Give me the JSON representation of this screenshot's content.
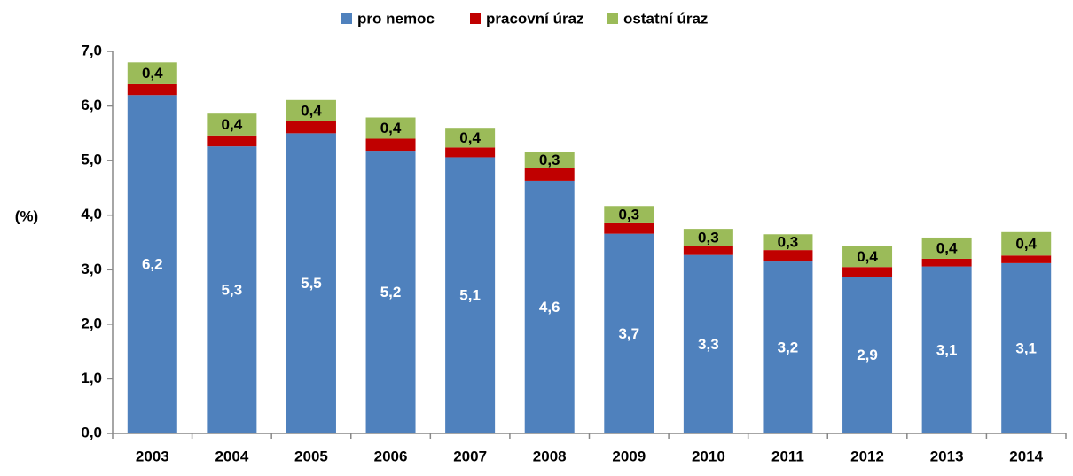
{
  "chart_data": {
    "type": "stacked_bar",
    "y_label": "(%)",
    "categories": [
      "2003",
      "2004",
      "2005",
      "2006",
      "2007",
      "2008",
      "2009",
      "2010",
      "2011",
      "2012",
      "2013",
      "2014"
    ],
    "series": [
      {
        "name": "pro nemoc",
        "color": "#4f81bd",
        "values": [
          6.2,
          5.26,
          5.5,
          5.18,
          5.06,
          4.63,
          3.66,
          3.27,
          3.15,
          2.87,
          3.06,
          3.12
        ],
        "value_labels": [
          "6,2",
          "5,3",
          "5,5",
          "5,2",
          "5,1",
          "4,6",
          "3,7",
          "3,3",
          "3,2",
          "2,9",
          "3,1",
          "3,1"
        ]
      },
      {
        "name": "pracovní úraz",
        "color": "#c00000",
        "values": [
          0.2,
          0.2,
          0.22,
          0.22,
          0.18,
          0.23,
          0.19,
          0.16,
          0.21,
          0.18,
          0.14,
          0.14
        ]
      },
      {
        "name": "ostatní úraz",
        "color": "#9bbb59",
        "values": [
          0.4,
          0.4,
          0.39,
          0.39,
          0.36,
          0.3,
          0.32,
          0.32,
          0.29,
          0.38,
          0.39,
          0.43
        ],
        "value_labels": [
          "0,4",
          "0,4",
          "0,4",
          "0,4",
          "0,4",
          "0,3",
          "0,3",
          "0,3",
          "0,3",
          "0,4",
          "0,4",
          "0,4"
        ]
      }
    ],
    "ylim": [
      0,
      7
    ],
    "yticks": [
      {
        "value": 0,
        "label": "0,0"
      },
      {
        "value": 1,
        "label": "1,0"
      },
      {
        "value": 2,
        "label": "2,0"
      },
      {
        "value": 3,
        "label": "3,0"
      },
      {
        "value": 4,
        "label": "4,0"
      },
      {
        "value": 5,
        "label": "5,0"
      },
      {
        "value": 6,
        "label": "6,0"
      },
      {
        "value": 7,
        "label": "7,0"
      }
    ],
    "grid": false,
    "legend": "top"
  }
}
